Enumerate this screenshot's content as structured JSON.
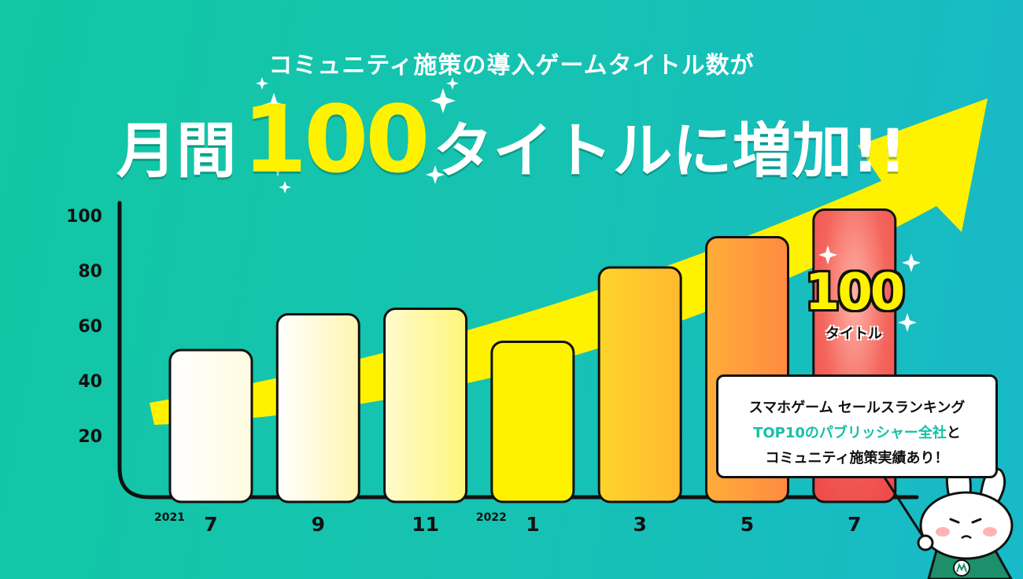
{
  "header": {
    "subtitle": "コミュニティ施策の導入ゲームタイトル数が",
    "headline_pre": "月間",
    "headline_number": "100",
    "headline_post": "タイトルに増加!!"
  },
  "callout": {
    "line1": "スマホゲーム セールスランキング",
    "line2_highlight": "TOP10のパブリッシャー全社",
    "line2_suffix": "と",
    "line3": "コミュニティ施策実績あり！"
  },
  "badge": {
    "number": "100",
    "label": "タイトル"
  },
  "colors": {
    "background_start": "#12c7a3",
    "background_end": "#18b9c9",
    "arrow": "#fff200",
    "highlight_text": "#15c0a6",
    "final_bar": "#f25a55"
  },
  "chart_data": {
    "type": "bar",
    "categories": [
      "7",
      "9",
      "11",
      "1",
      "3",
      "5",
      "7"
    ],
    "year_labels": [
      {
        "text": "2021",
        "category_index": 0
      },
      {
        "text": "2022",
        "category_index": 3
      }
    ],
    "values": [
      52,
      65,
      67,
      55,
      82,
      93,
      103
    ],
    "bar_colors": [
      "#ffffff",
      "#fffbe0",
      "#fff79a",
      "#fff200",
      "#ffc531",
      "#ff9a3c",
      "#f25a55"
    ],
    "yticks": [
      20,
      40,
      60,
      80,
      100
    ],
    "ylim": [
      0,
      105
    ],
    "grid": false,
    "title": "",
    "xlabel": "",
    "ylabel": ""
  }
}
